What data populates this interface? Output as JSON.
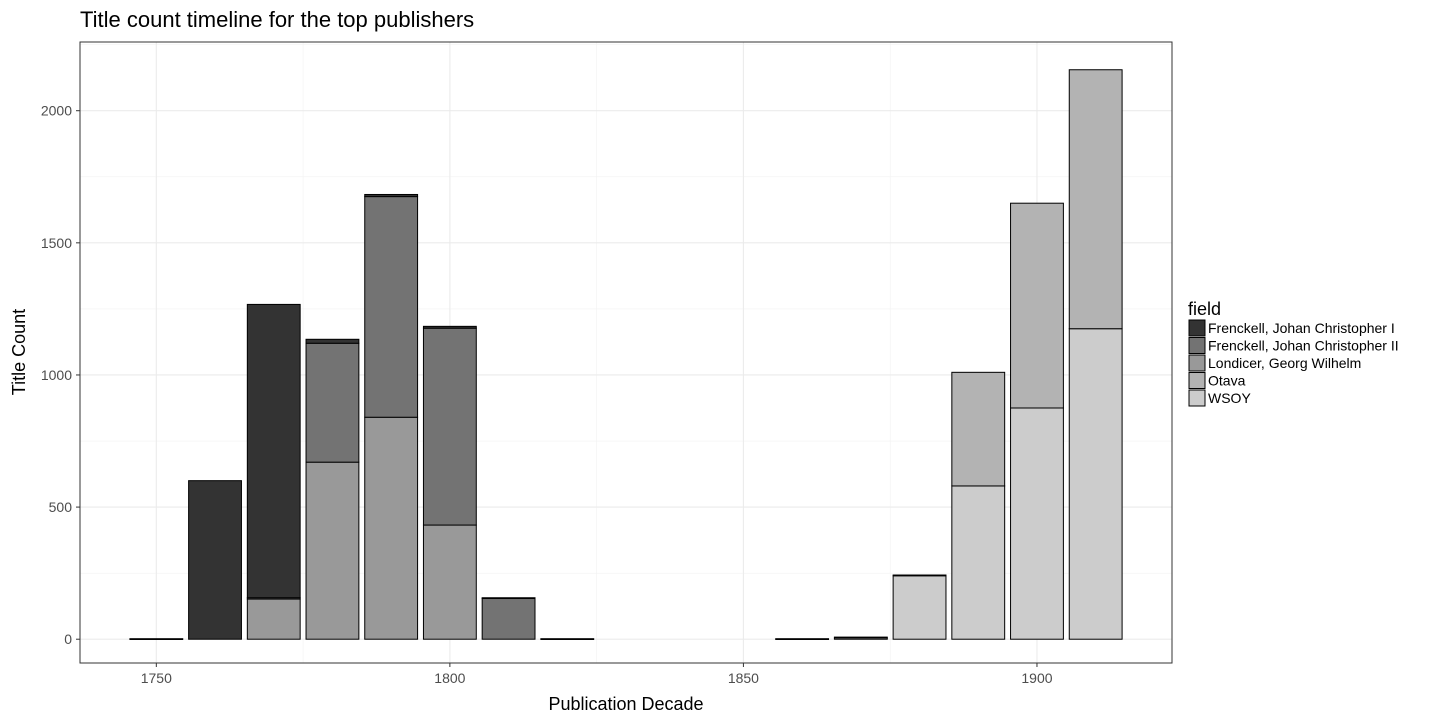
{
  "chart_data": {
    "type": "bar",
    "stacked": true,
    "title": "Title count timeline for the top publishers",
    "xlabel": "Publication Decade",
    "ylabel": "Title Count",
    "xlim": [
      1737,
      1923
    ],
    "ylim": [
      -90,
      2260
    ],
    "x_ticks": [
      1750,
      1800,
      1850,
      1900
    ],
    "y_ticks": [
      0,
      500,
      1000,
      1500,
      2000
    ],
    "grid": true,
    "legend": {
      "title": "field",
      "position": "right",
      "entries": [
        "Frenckell, Johan Christopher I",
        "Frenckell, Johan Christopher II",
        "Londicer, Georg Wilhelm",
        "Otava",
        "WSOY"
      ]
    },
    "categories": [
      1750,
      1760,
      1770,
      1780,
      1790,
      1800,
      1810,
      1820,
      1860,
      1870,
      1880,
      1890,
      1900,
      1910
    ],
    "series": [
      {
        "name": "WSOY",
        "color": "#cccccc",
        "values": [
          0,
          0,
          0,
          0,
          0,
          0,
          0,
          0,
          2,
          5,
          240,
          580,
          875,
          1175
        ]
      },
      {
        "name": "Otava",
        "color": "#b3b3b3",
        "values": [
          0,
          0,
          0,
          0,
          0,
          0,
          0,
          0,
          0,
          3,
          3,
          430,
          775,
          980
        ]
      },
      {
        "name": "Londicer, Georg Wilhelm",
        "color": "#999999",
        "values": [
          0,
          0,
          152,
          670,
          840,
          432,
          0,
          0,
          0,
          0,
          0,
          0,
          0,
          0
        ]
      },
      {
        "name": "Frenckell, Johan Christopher II",
        "color": "#737373",
        "values": [
          0,
          0,
          5,
          450,
          835,
          745,
          155,
          2,
          0,
          0,
          0,
          0,
          0,
          0
        ]
      },
      {
        "name": "Frenckell, Johan Christopher I",
        "color": "#333333",
        "values": [
          2,
          600,
          1110,
          15,
          8,
          7,
          2,
          0,
          0,
          0,
          0,
          0,
          0,
          0
        ]
      }
    ]
  }
}
